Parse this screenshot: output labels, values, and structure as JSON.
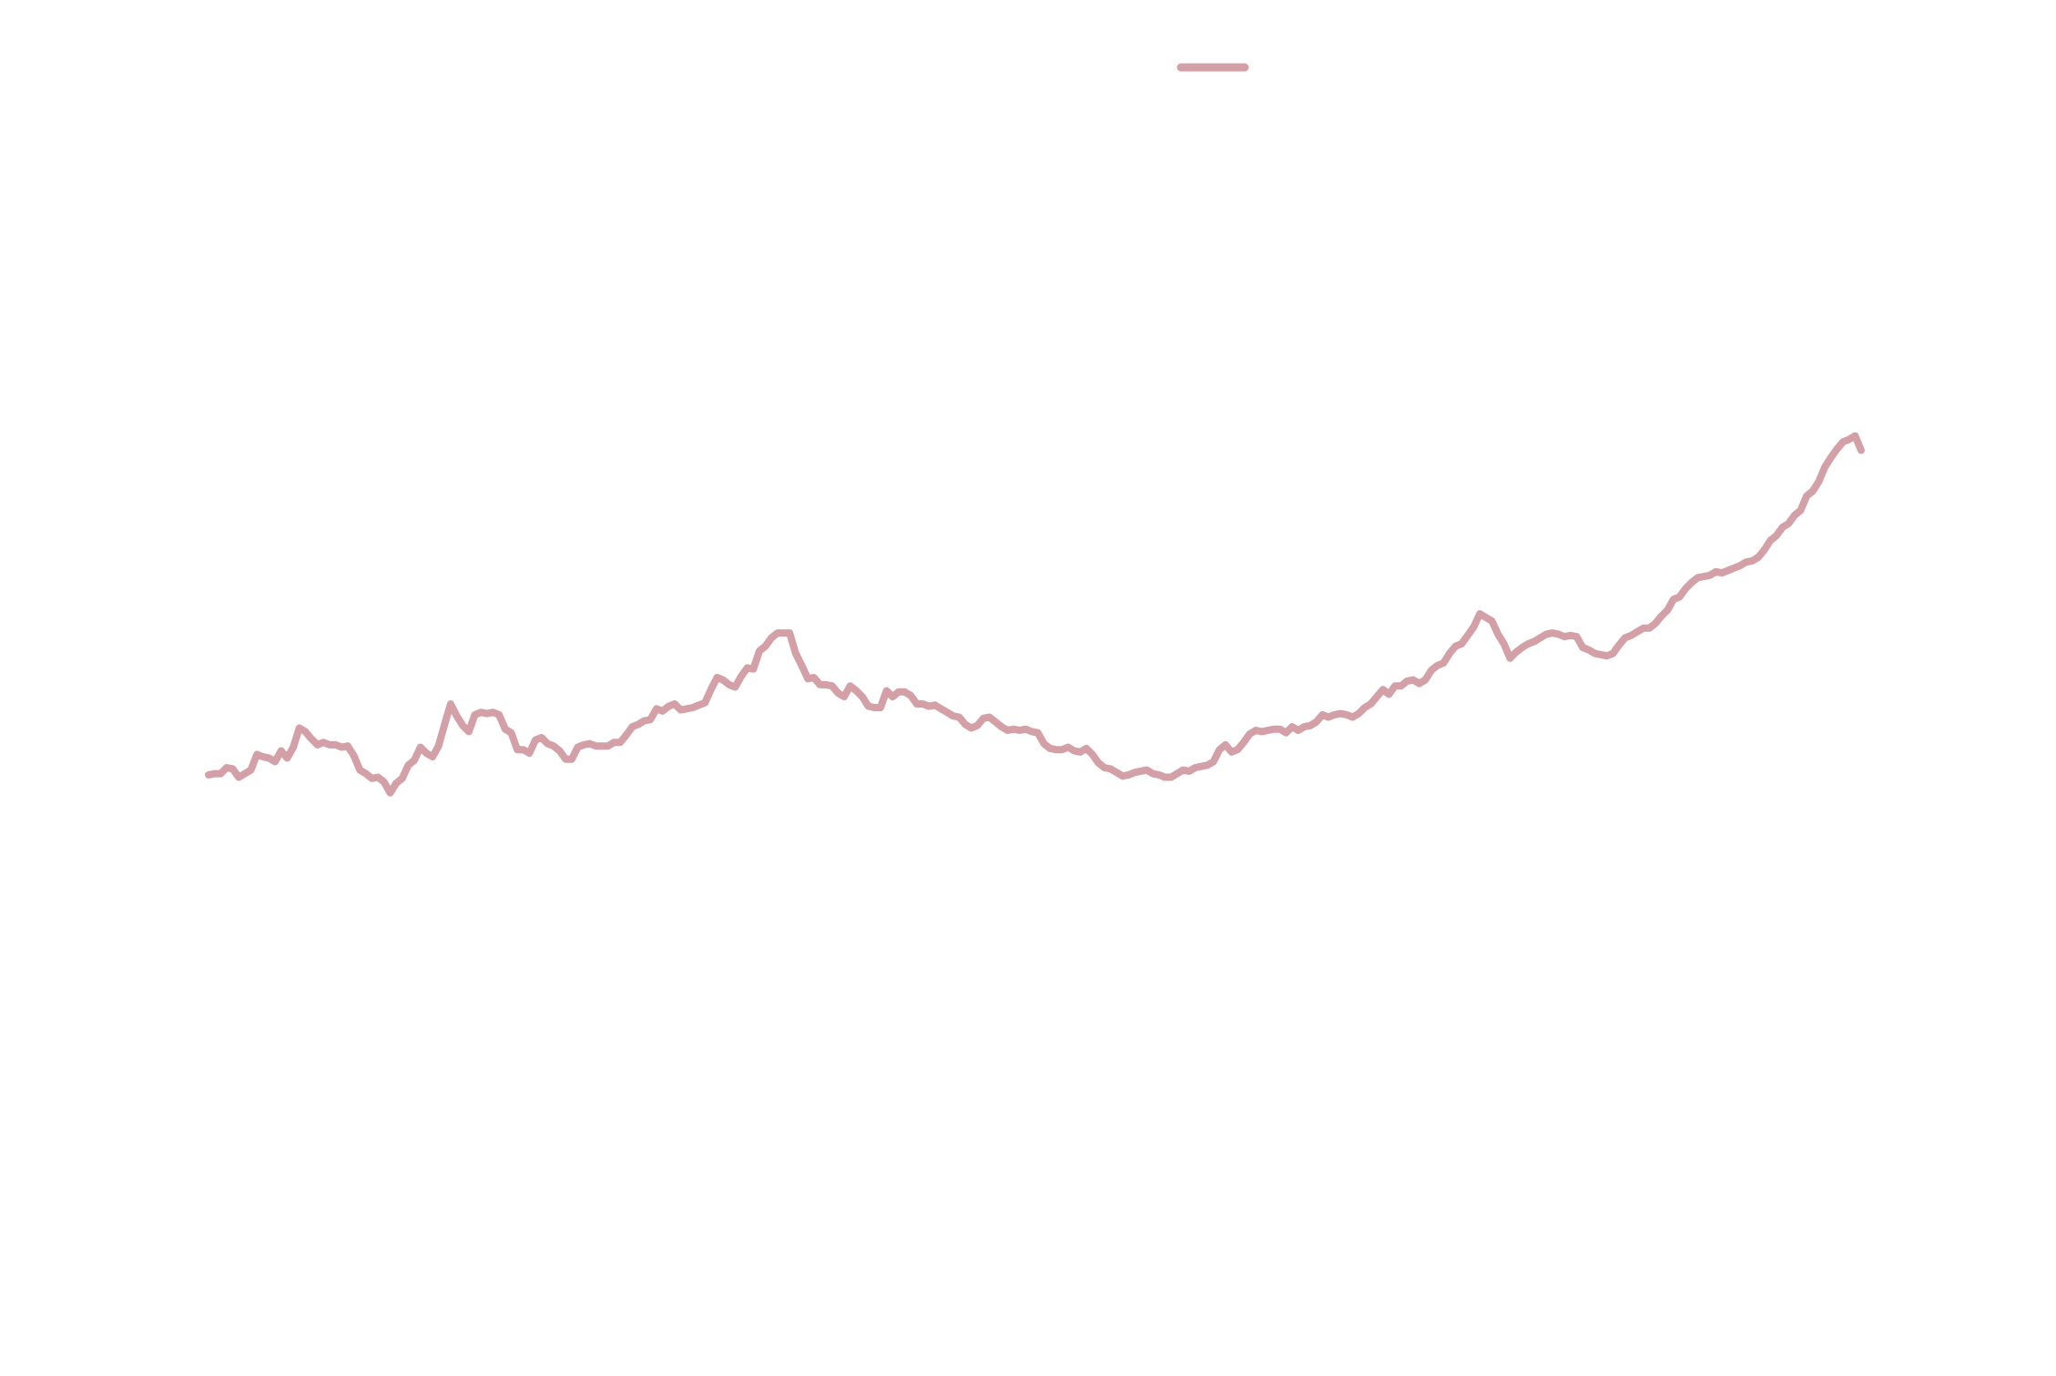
{
  "chart_data": {
    "type": "line",
    "title": "",
    "xlabel": "",
    "ylabel": "",
    "axes_visible": false,
    "grid": false,
    "legend": {
      "placement": "top-center",
      "entries": [
        {
          "label": "",
          "color": "#d4a0a7"
        }
      ]
    },
    "ylim": [
      0,
      100
    ],
    "series": [
      {
        "name": "",
        "color": "#d4a0a7",
        "values": [
          41.6,
          41.7,
          41.7,
          42.2,
          42.1,
          41.4,
          41.7,
          42.0,
          43.3,
          43.1,
          43.0,
          42.7,
          43.6,
          43.0,
          43.9,
          45.5,
          45.2,
          44.6,
          44.1,
          44.3,
          44.1,
          44.1,
          43.9,
          44.0,
          43.2,
          42.0,
          41.7,
          41.3,
          41.4,
          41.0,
          40.1,
          40.9,
          41.3,
          42.4,
          42.8,
          43.9,
          43.4,
          43.1,
          44.0,
          45.8,
          47.5,
          46.5,
          45.7,
          45.2,
          46.6,
          46.8,
          46.7,
          46.8,
          46.6,
          45.4,
          45.1,
          43.7,
          43.7,
          43.4,
          44.5,
          44.7,
          44.2,
          44.0,
          43.6,
          42.9,
          42.9,
          43.9,
          44.1,
          44.2,
          44.0,
          44.0,
          44.0,
          44.3,
          44.3,
          44.9,
          45.6,
          45.8,
          46.1,
          46.2,
          47.1,
          46.9,
          47.3,
          47.5,
          47.0,
          47.1,
          47.2,
          47.4,
          47.6,
          48.7,
          49.7,
          49.5,
          49.1,
          48.9,
          49.8,
          50.5,
          50.4,
          51.9,
          52.3,
          53.0,
          53.4,
          53.4,
          53.4,
          51.7,
          50.7,
          49.6,
          49.7,
          49.1,
          49.1,
          49.0,
          48.4,
          48.1,
          49.0,
          48.6,
          48.1,
          47.3,
          47.2,
          47.2,
          48.6,
          48.1,
          48.5,
          48.5,
          48.2,
          47.5,
          47.5,
          47.3,
          47.4,
          47.1,
          46.8,
          46.5,
          46.4,
          45.8,
          45.5,
          45.7,
          46.3,
          46.4,
          46.0,
          45.6,
          45.3,
          45.4,
          45.3,
          45.4,
          45.2,
          45.1,
          44.2,
          43.8,
          43.7,
          43.7,
          43.9,
          43.6,
          43.5,
          43.8,
          43.3,
          42.6,
          42.2,
          42.1,
          41.8,
          41.5,
          41.6,
          41.8,
          41.9,
          42.0,
          41.7,
          41.6,
          41.4,
          41.4,
          41.7,
          42.0,
          41.9,
          42.2,
          42.3,
          42.4,
          42.7,
          43.7,
          44.1,
          43.5,
          43.7,
          44.3,
          45.0,
          45.3,
          45.2,
          45.3,
          45.4,
          45.4,
          45.1,
          45.6,
          45.3,
          45.6,
          45.7,
          46.0,
          46.6,
          46.4,
          46.6,
          46.7,
          46.6,
          46.4,
          46.7,
          47.2,
          47.5,
          48.1,
          48.7,
          48.3,
          49.0,
          49.0,
          49.4,
          49.5,
          49.2,
          49.5,
          50.3,
          50.7,
          50.9,
          51.7,
          52.3,
          52.5,
          53.2,
          53.9,
          55.0,
          54.7,
          54.4,
          53.3,
          52.5,
          51.3,
          51.8,
          52.2,
          52.5,
          52.7,
          53.0,
          53.3,
          53.4,
          53.3,
          53.1,
          53.2,
          53.1,
          52.2,
          52.0,
          51.7,
          51.6,
          51.5,
          51.7,
          52.4,
          53.0,
          53.2,
          53.5,
          53.8,
          53.8,
          54.2,
          54.8,
          55.3,
          56.2,
          56.4,
          57.1,
          57.6,
          58.0,
          58.1,
          58.2,
          58.5,
          58.4,
          58.6,
          58.8,
          59.0,
          59.3,
          59.4,
          59.7,
          60.3,
          61.1,
          61.5,
          62.2,
          62.5,
          63.2,
          63.6,
          64.8,
          65.2,
          66.0,
          67.2,
          68.0,
          68.7,
          69.3,
          69.5,
          69.8,
          68.6
        ]
      }
    ]
  }
}
